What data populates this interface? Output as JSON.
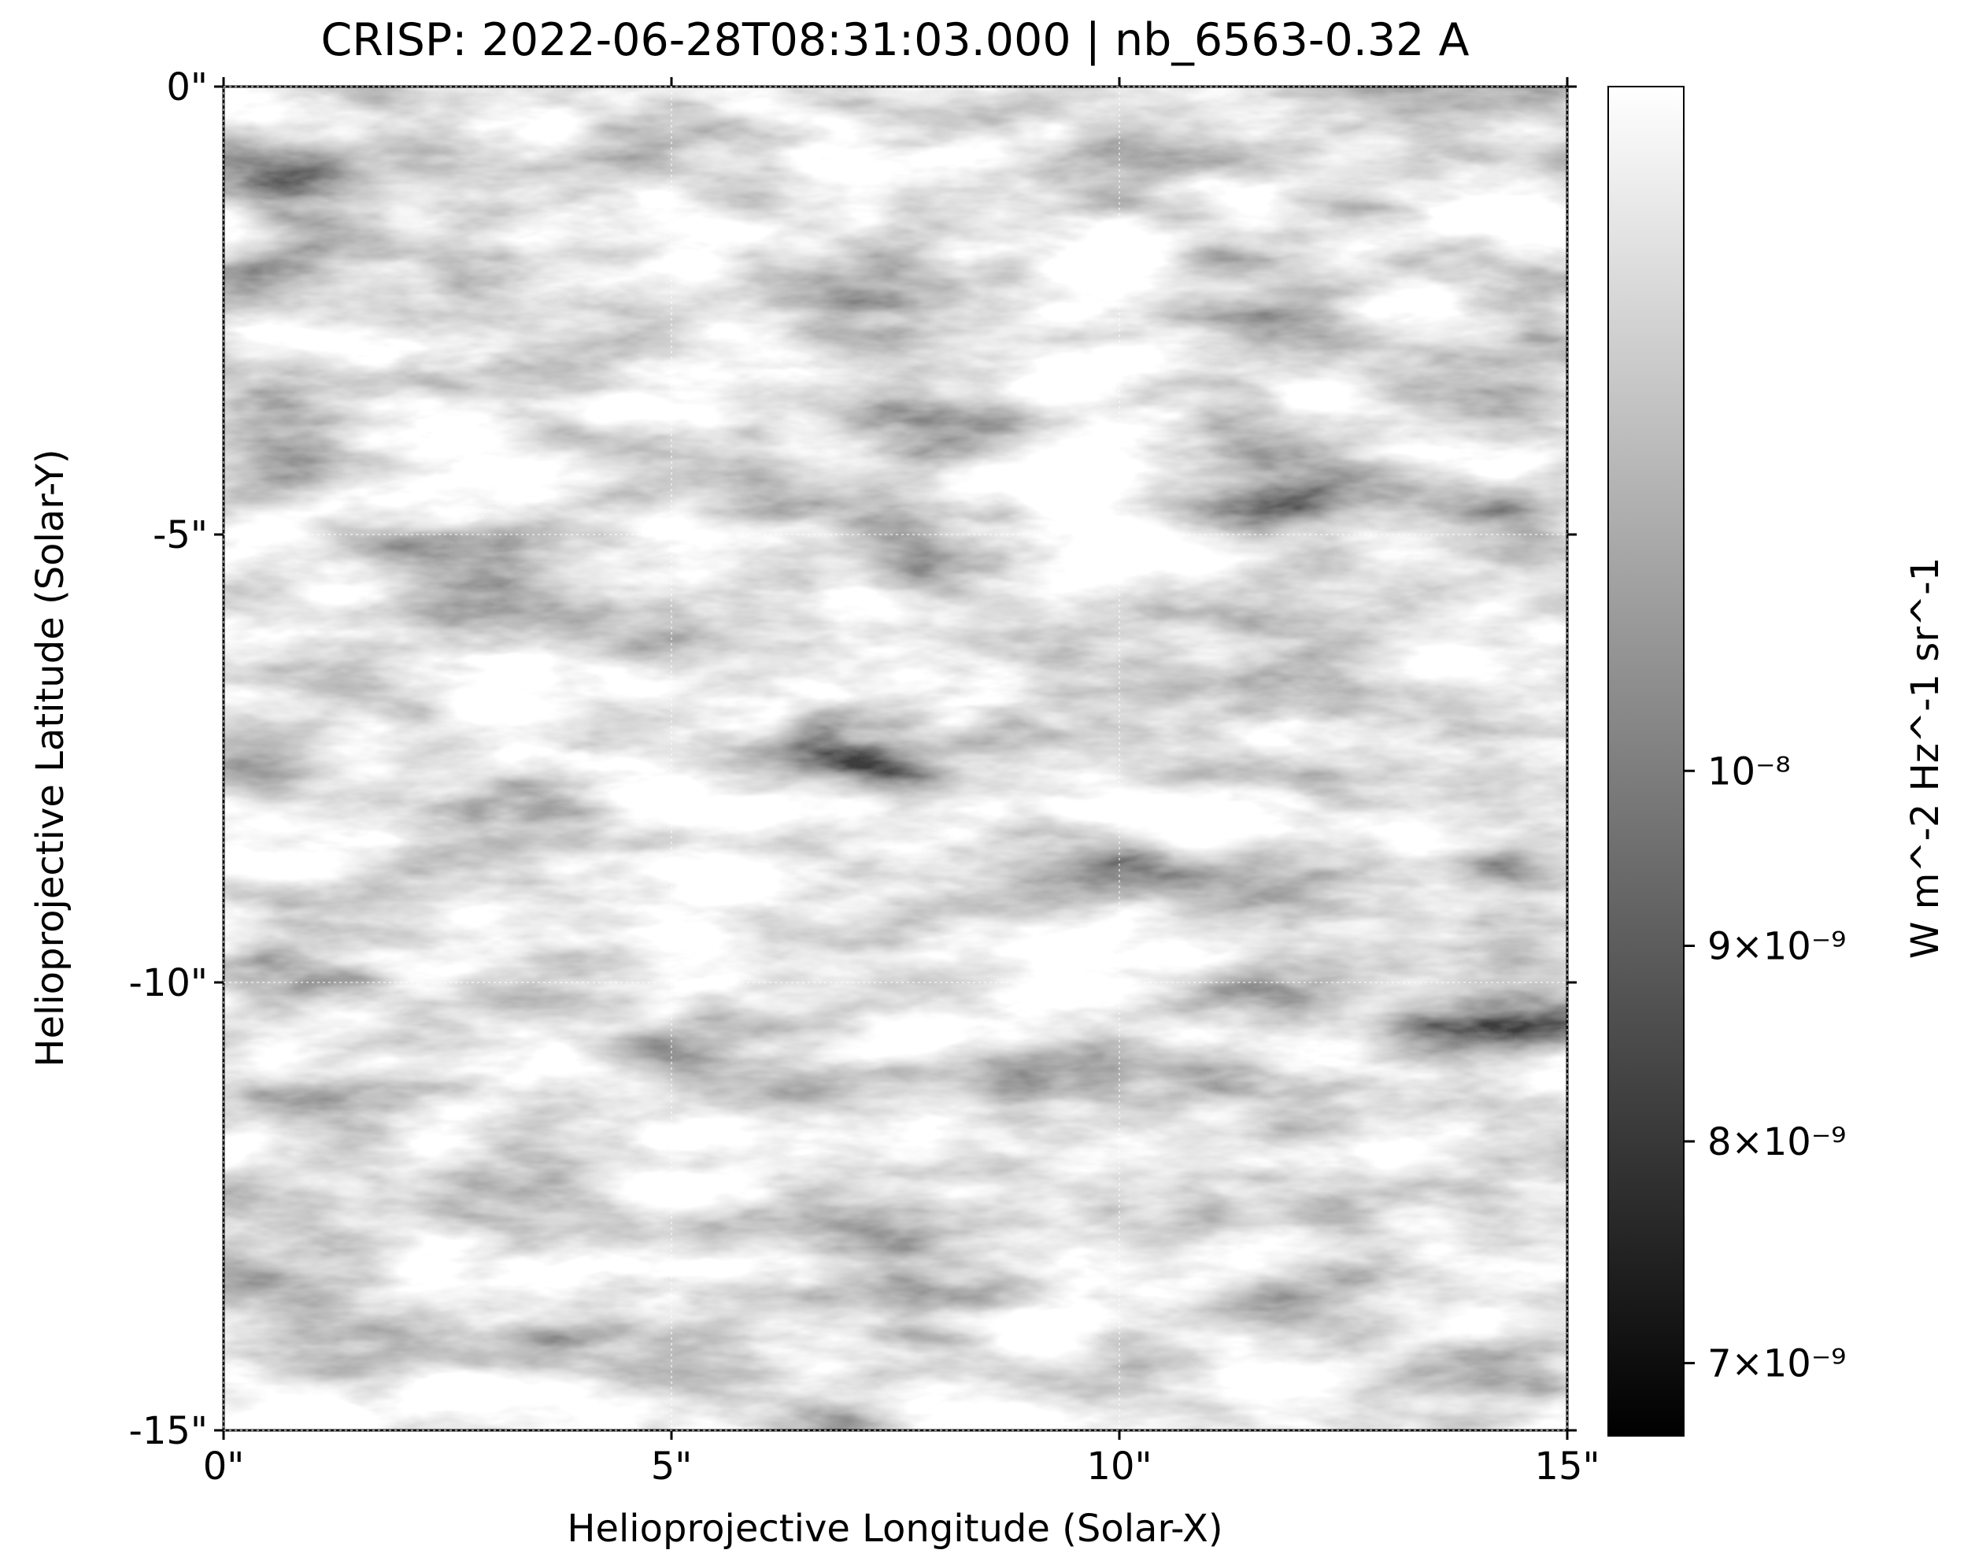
{
  "chart_data": {
    "type": "image",
    "title": "CRISP: 2022-06-28T08:31:03.000 | nb_6563-0.32 A",
    "x_label": "Helioprojective Longitude (Solar-X)",
    "y_label": "Helioprojective Latitude (Solar-Y)",
    "xlim": [
      0,
      15
    ],
    "ylim": [
      -15,
      0
    ],
    "xticks": [
      {
        "value": 0,
        "label": "0\""
      },
      {
        "value": 5,
        "label": "5\""
      },
      {
        "value": 10,
        "label": "10\""
      },
      {
        "value": 15,
        "label": "15\""
      }
    ],
    "yticks": [
      {
        "value": 0,
        "label": "0\""
      },
      {
        "value": -5,
        "label": "-5\""
      },
      {
        "value": -10,
        "label": "-10\""
      },
      {
        "value": -15,
        "label": "-15\""
      }
    ],
    "grid": true,
    "colormap": "gray",
    "colorbar": {
      "label": "W m^-2 Hz^-1 sr^-1",
      "scale": "log",
      "clim": [
        6.7e-09,
        1.51e-08
      ],
      "ticks": [
        {
          "value": 1e-08,
          "label": "10⁻⁸"
        },
        {
          "value": 9e-09,
          "label": "9×10⁻⁹"
        },
        {
          "value": 8e-09,
          "label": "8×10⁻⁹"
        },
        {
          "value": 7e-09,
          "label": "7×10⁻⁹"
        }
      ]
    }
  }
}
